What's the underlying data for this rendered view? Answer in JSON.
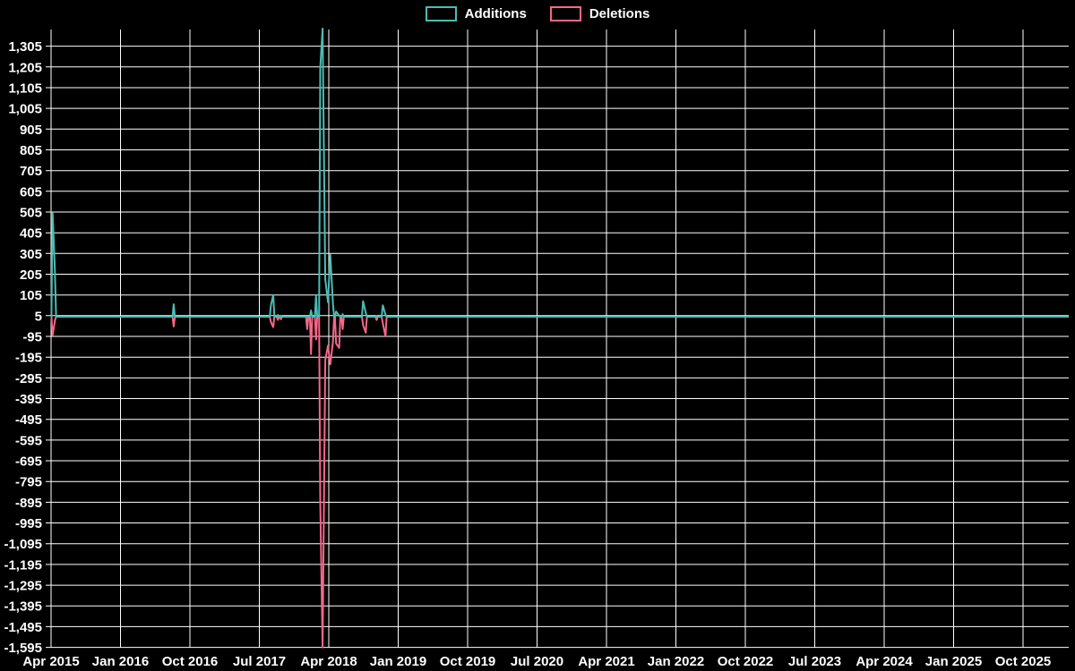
{
  "colors": {
    "background": "#000000",
    "grid": "#ffffff",
    "text": "#ffffff",
    "additions": "#4CBCB4",
    "deletions": "#F5678A"
  },
  "legend": {
    "items": [
      {
        "label": "Additions",
        "color": "#4CBCB4"
      },
      {
        "label": "Deletions",
        "color": "#F5678A"
      }
    ]
  },
  "chart_data": {
    "type": "line",
    "title": "",
    "xlabel": "",
    "ylabel": "",
    "grid": true,
    "legend_position": "top-center",
    "x_axis": {
      "unit": "months since Apr 2015 (weekly data points)",
      "range_months": [
        0,
        132
      ],
      "tick_month_offsets": [
        0,
        9,
        18,
        27,
        36,
        45,
        54,
        63,
        72,
        81,
        90,
        99,
        108,
        117,
        126
      ],
      "tick_labels": [
        "Apr 2015",
        "Jan 2016",
        "Oct 2016",
        "Jul 2017",
        "Apr 2018",
        "Jan 2019",
        "Oct 2019",
        "Jul 2020",
        "Apr 2021",
        "Jan 2022",
        "Oct 2022",
        "Jul 2023",
        "Apr 2024",
        "Jan 2025",
        "Oct 2025"
      ]
    },
    "y_axis": {
      "max": 1305,
      "min": -1595,
      "step": 100,
      "tick_labels": [
        "1,305",
        "1,205",
        "1,105",
        "1,005",
        "905",
        "805",
        "705",
        "605",
        "505",
        "405",
        "305",
        "205",
        "105",
        "5",
        "-95",
        "-195",
        "-295",
        "-395",
        "-495",
        "-595",
        "-695",
        "-795",
        "-895",
        "-995",
        "-1,095",
        "-1,195",
        "-1,295",
        "-1,395",
        "-1,495",
        "-1,595"
      ]
    },
    "series": [
      {
        "name": "Additions",
        "key": "a",
        "color": "#4CBCB4"
      },
      {
        "name": "Deletions",
        "key": "d",
        "color": "#F5678A"
      }
    ],
    "baseline_value": 0,
    "note": "Both series are 0 at all times except the events below; m = months after Apr 2015",
    "events": [
      {
        "m": 0.2,
        "a": 505,
        "d": -90
      },
      {
        "m": 0.5,
        "a": 220,
        "d": -20
      },
      {
        "m": 15.9,
        "a": 60,
        "d": -47
      },
      {
        "m": 28.5,
        "a": 55,
        "d": -25
      },
      {
        "m": 28.8,
        "a": 105,
        "d": -50
      },
      {
        "m": 29.4,
        "a": 8,
        "d": -15
      },
      {
        "m": 29.8,
        "a": 5,
        "d": -12
      },
      {
        "m": 33.2,
        "a": 0,
        "d": -60
      },
      {
        "m": 33.7,
        "a": 30,
        "d": -180
      },
      {
        "m": 34.35,
        "a": 100,
        "d": -110
      },
      {
        "m": 34.9,
        "a": 1200,
        "d": -895
      },
      {
        "m": 35.2,
        "a": 1390,
        "d": -1595
      },
      {
        "m": 35.55,
        "a": 180,
        "d": -210
      },
      {
        "m": 35.9,
        "a": 70,
        "d": -140
      },
      {
        "m": 36.2,
        "a": 300,
        "d": -230
      },
      {
        "m": 36.55,
        "a": 60,
        "d": -120
      },
      {
        "m": 36.95,
        "a": 25,
        "d": -130
      },
      {
        "m": 37.35,
        "a": 5,
        "d": -150
      },
      {
        "m": 37.8,
        "a": 12,
        "d": -60
      },
      {
        "m": 40.45,
        "a": 75,
        "d": -40
      },
      {
        "m": 40.8,
        "a": 18,
        "d": -77
      },
      {
        "m": 42.2,
        "a": 2,
        "d": -16
      },
      {
        "m": 43.0,
        "a": 55,
        "d": -30
      },
      {
        "m": 43.35,
        "a": 10,
        "d": -95
      }
    ]
  }
}
